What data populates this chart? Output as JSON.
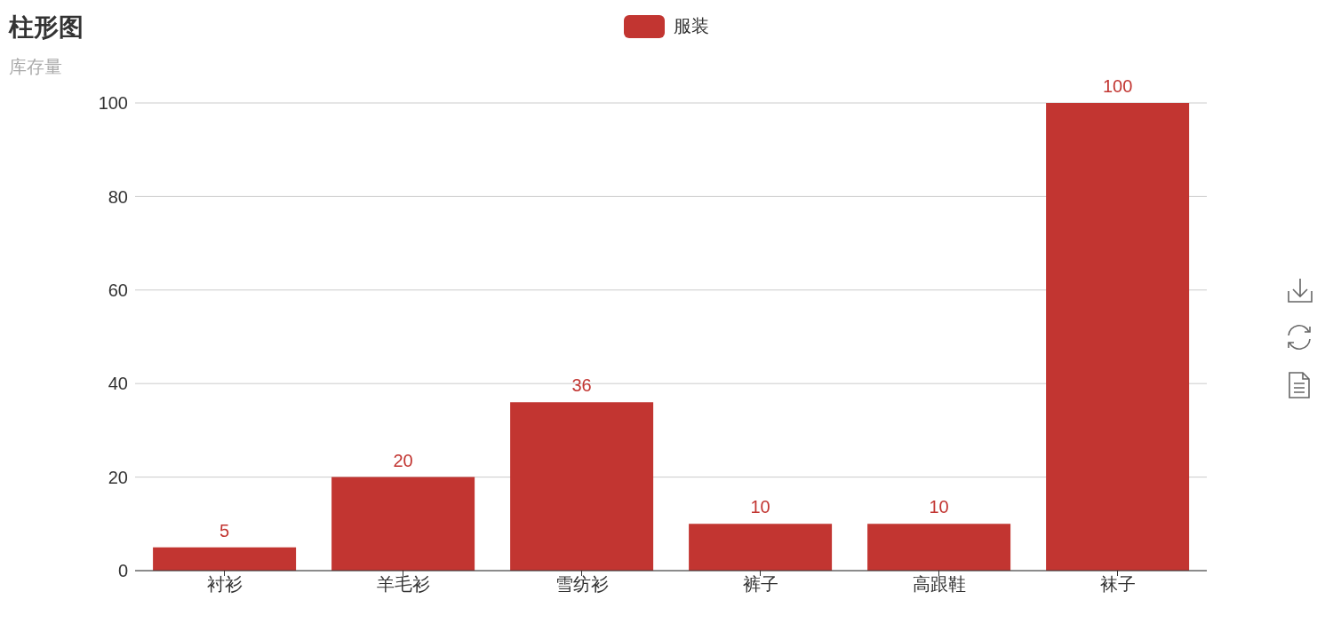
{
  "chart_data": {
    "type": "bar",
    "title": "柱形图",
    "subtitle": "库存量",
    "categories": [
      "衬衫",
      "羊毛衫",
      "雪纺衫",
      "裤子",
      "高跟鞋",
      "袜子"
    ],
    "series": [
      {
        "name": "服装",
        "color": "#c23531",
        "values": [
          5,
          20,
          36,
          10,
          10,
          100
        ]
      }
    ],
    "ylim": [
      0,
      100
    ],
    "yticks": [
      0,
      20,
      40,
      60,
      80,
      100
    ],
    "grid": "y",
    "legend": "top",
    "data_labels": true
  }
}
